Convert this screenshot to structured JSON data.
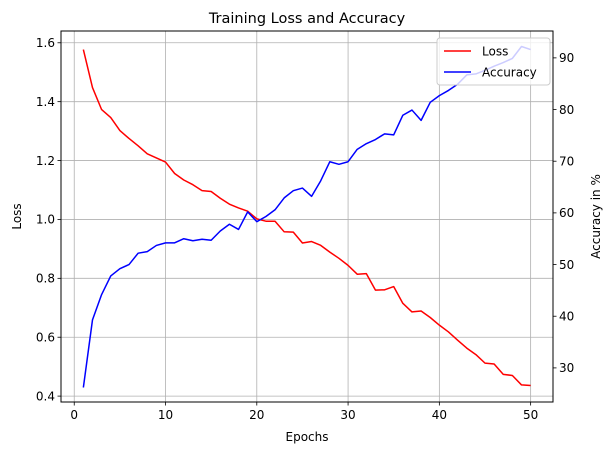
{
  "chart_data": {
    "type": "line",
    "title": "Training Loss and Accuracy",
    "xlabel": "Epochs",
    "ylabel_left": "Loss",
    "ylabel_right": "Accuracy in %",
    "xlim": [
      -1.45,
      52.45
    ],
    "ylim_left": [
      0.38,
      1.64
    ],
    "ylim_right": [
      23.4,
      95.2
    ],
    "x_ticks": [
      0,
      10,
      20,
      30,
      40,
      50
    ],
    "y_left_ticks": [
      "0.4",
      "0.6",
      "0.8",
      "1.0",
      "1.2",
      "1.4",
      "1.6"
    ],
    "y_right_ticks": [
      "30",
      "40",
      "50",
      "60",
      "70",
      "80",
      "90"
    ],
    "grid": true,
    "legend_position": "top-right",
    "x": [
      1,
      2,
      3,
      4,
      5,
      6,
      7,
      8,
      9,
      10,
      11,
      12,
      13,
      14,
      15,
      16,
      17,
      18,
      19,
      20,
      21,
      22,
      23,
      24,
      25,
      26,
      27,
      28,
      29,
      30,
      31,
      32,
      33,
      34,
      35,
      36,
      37,
      38,
      39,
      40,
      41,
      42,
      43,
      44,
      45,
      46,
      47,
      48,
      49,
      50
    ],
    "series": [
      {
        "name": "Loss",
        "axis": "left",
        "color": "#ff0000",
        "values": [
          1.577,
          1.448,
          1.373,
          1.346,
          1.302,
          1.275,
          1.25,
          1.223,
          1.209,
          1.195,
          1.156,
          1.134,
          1.118,
          1.098,
          1.095,
          1.072,
          1.052,
          1.039,
          1.028,
          1.002,
          0.994,
          0.994,
          0.958,
          0.957,
          0.92,
          0.925,
          0.912,
          0.889,
          0.868,
          0.844,
          0.814,
          0.816,
          0.76,
          0.761,
          0.772,
          0.715,
          0.686,
          0.689,
          0.667,
          0.641,
          0.618,
          0.59,
          0.563,
          0.541,
          0.512,
          0.509,
          0.474,
          0.47,
          0.438,
          0.436
        ]
      },
      {
        "name": "Accuracy",
        "axis": "right",
        "color": "#0000ff",
        "values": [
          26.2,
          39.3,
          44.2,
          47.8,
          49.2,
          50.0,
          52.2,
          52.5,
          53.7,
          54.2,
          54.2,
          55.0,
          54.6,
          54.9,
          54.7,
          56.5,
          57.8,
          56.8,
          60.2,
          58.3,
          59.3,
          60.6,
          62.9,
          64.3,
          64.8,
          63.2,
          66.2,
          69.9,
          69.4,
          69.9,
          72.3,
          73.4,
          74.2,
          75.3,
          75.1,
          78.9,
          79.9,
          77.9,
          81.4,
          82.7,
          83.7,
          84.9,
          86.7,
          86.9,
          87.6,
          88.4,
          89.1,
          89.9,
          92.2,
          91.6
        ]
      }
    ]
  }
}
